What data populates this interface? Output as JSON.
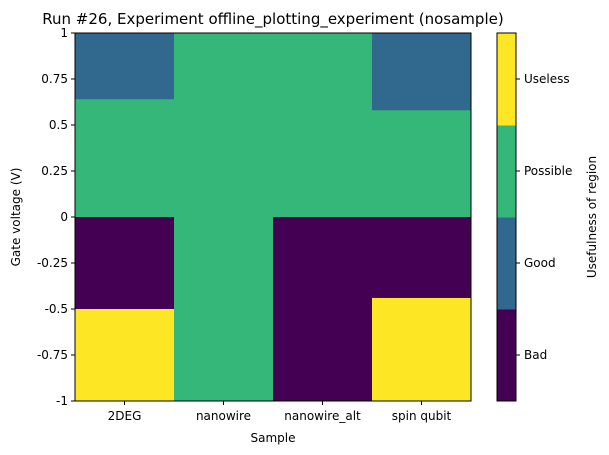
{
  "chart_data": {
    "type": "heatmap",
    "title": "Run #26, Experiment offline_plotting_experiment (nosample)",
    "xlabel": "Sample",
    "ylabel": "Gate voltage (V)",
    "categories": [
      "2DEG",
      "nanowire",
      "nanowire_alt",
      "spin qubit"
    ],
    "ylim": [
      -1,
      1
    ],
    "yticks": [
      {
        "value": 1,
        "label": "1"
      },
      {
        "value": 0.75,
        "label": "0.75"
      },
      {
        "value": 0.5,
        "label": "0.5"
      },
      {
        "value": 0.25,
        "label": "0.25"
      },
      {
        "value": 0,
        "label": "0"
      },
      {
        "value": -0.25,
        "label": "-0.25"
      },
      {
        "value": -0.5,
        "label": "-0.5"
      },
      {
        "value": -0.75,
        "label": "-0.75"
      },
      {
        "value": -1,
        "label": "-1"
      }
    ],
    "cells": [
      {
        "category": "2DEG",
        "y0": 0.64,
        "y1": 1.0,
        "value": "Good"
      },
      {
        "category": "2DEG",
        "y0": 0.0,
        "y1": 0.64,
        "value": "Possible"
      },
      {
        "category": "2DEG",
        "y0": -0.5,
        "y1": 0.0,
        "value": "Bad"
      },
      {
        "category": "2DEG",
        "y0": -1.0,
        "y1": -0.5,
        "value": "Useless"
      },
      {
        "category": "nanowire",
        "y0": -1.0,
        "y1": 1.0,
        "value": "Possible"
      },
      {
        "category": "nanowire_alt",
        "y0": 0.0,
        "y1": 1.0,
        "value": "Possible"
      },
      {
        "category": "nanowire_alt",
        "y0": -1.0,
        "y1": 0.0,
        "value": "Bad"
      },
      {
        "category": "spin qubit",
        "y0": 0.58,
        "y1": 1.0,
        "value": "Good"
      },
      {
        "category": "spin qubit",
        "y0": 0.0,
        "y1": 0.58,
        "value": "Possible"
      },
      {
        "category": "spin qubit",
        "y0": -0.44,
        "y1": 0.0,
        "value": "Bad"
      },
      {
        "category": "spin qubit",
        "y0": -1.0,
        "y1": -0.44,
        "value": "Useless"
      }
    ],
    "colorbar": {
      "label": "Usefulness of region",
      "levels": [
        {
          "label": "Bad",
          "color": "#440154"
        },
        {
          "label": "Good",
          "color": "#31688e"
        },
        {
          "label": "Possible",
          "color": "#35b779"
        },
        {
          "label": "Useless",
          "color": "#fde725"
        }
      ]
    },
    "grid": false
  }
}
